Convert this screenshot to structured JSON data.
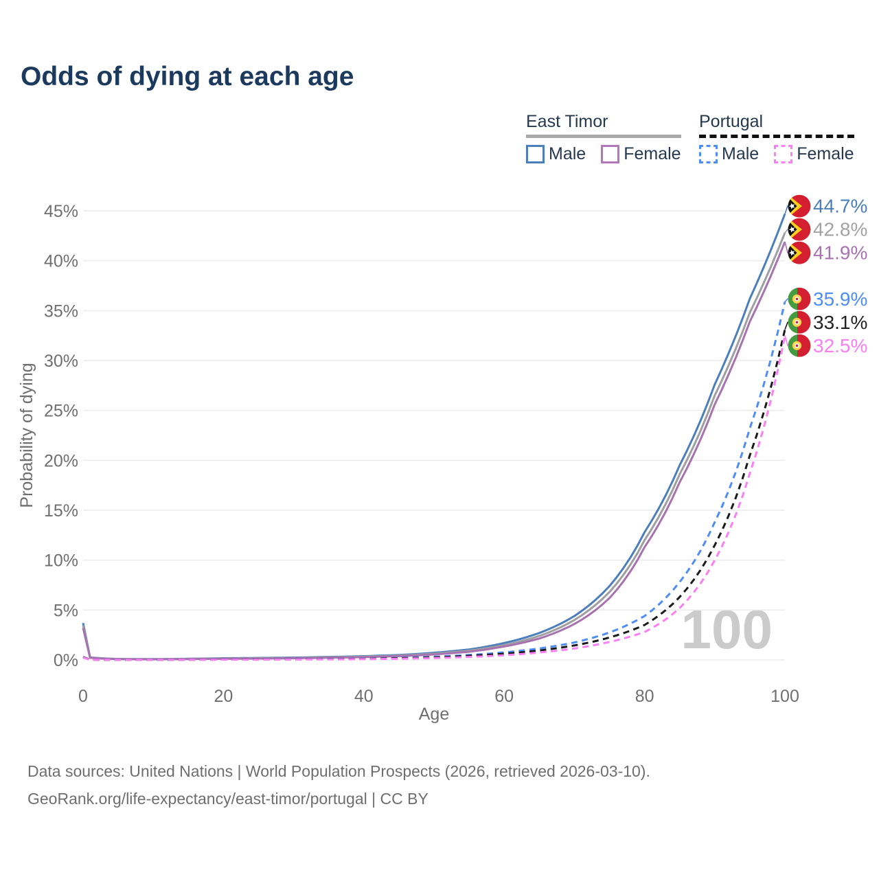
{
  "title": "Odds of dying at each age",
  "legend": {
    "groups": [
      {
        "label": "East Timor",
        "line_style": "solid",
        "underline_color": "#a9a9a9",
        "items": [
          {
            "label": "Male",
            "color": "#4a7ebc"
          },
          {
            "label": "Female",
            "color": "#b277ba"
          }
        ]
      },
      {
        "label": "Portugal",
        "line_style": "dashed",
        "underline_color": "#111111",
        "items": [
          {
            "label": "Male",
            "color": "#4d8df5"
          },
          {
            "label": "Female",
            "color": "#fb7ef5"
          }
        ]
      }
    ]
  },
  "chart_data": {
    "type": "line",
    "title": "Odds of dying at each age",
    "xlabel": "Age",
    "ylabel": "Probability of dying",
    "xlim": [
      0,
      100
    ],
    "ylim": [
      0,
      45
    ],
    "x_ticks": [
      0,
      20,
      40,
      60,
      80,
      100
    ],
    "y_ticks": [
      0,
      5,
      10,
      15,
      20,
      25,
      30,
      35,
      40,
      45
    ],
    "y_tick_suffix": "%",
    "grid": true,
    "legend_position": "top-right",
    "watermark": "100",
    "x": [
      0,
      1,
      5,
      10,
      15,
      20,
      25,
      30,
      35,
      40,
      45,
      50,
      55,
      60,
      65,
      70,
      75,
      80,
      85,
      90,
      95,
      100
    ],
    "series": [
      {
        "name": "East Timor Male",
        "color": "#4a7ebc",
        "dash": false,
        "flag": "east-timor",
        "end_label": "44.7%",
        "end_label_color": "#4a7ebc",
        "values": [
          3.7,
          0.25,
          0.1,
          0.08,
          0.12,
          0.17,
          0.2,
          0.24,
          0.3,
          0.38,
          0.5,
          0.72,
          1.05,
          1.7,
          2.7,
          4.4,
          7.4,
          12.8,
          19.5,
          27.6,
          36.2,
          44.7
        ]
      },
      {
        "name": "East Timor Both sexes",
        "color": "#9e9ea3",
        "dash": false,
        "flag": "east-timor",
        "end_label": "42.8%",
        "end_label_color": "#a3a3a3",
        "values": [
          3.45,
          0.23,
          0.09,
          0.07,
          0.1,
          0.14,
          0.17,
          0.2,
          0.26,
          0.33,
          0.44,
          0.63,
          0.93,
          1.5,
          2.4,
          4.0,
          6.8,
          12.0,
          18.6,
          26.5,
          34.8,
          42.8
        ]
      },
      {
        "name": "East Timor Female",
        "color": "#a872b0",
        "dash": false,
        "flag": "east-timor",
        "end_label": "41.9%",
        "end_label_color": "#a872b0",
        "values": [
          3.2,
          0.21,
          0.08,
          0.06,
          0.09,
          0.12,
          0.14,
          0.17,
          0.22,
          0.28,
          0.38,
          0.55,
          0.82,
          1.35,
          2.15,
          3.6,
          6.2,
          11.3,
          17.8,
          25.6,
          33.9,
          41.9
        ]
      },
      {
        "name": "Portugal Male",
        "color": "#4d8df5",
        "dash": true,
        "flag": "portugal",
        "end_label": "35.9%",
        "end_label_color": "#4d8df5",
        "values": [
          0.3,
          0.03,
          0.01,
          0.01,
          0.03,
          0.05,
          0.06,
          0.07,
          0.09,
          0.13,
          0.2,
          0.32,
          0.5,
          0.76,
          1.15,
          1.75,
          2.75,
          4.4,
          7.8,
          13.8,
          23.2,
          35.9
        ]
      },
      {
        "name": "Portugal Both sexes",
        "color": "#1a1a1a",
        "dash": true,
        "flag": "portugal",
        "end_label": "33.1%",
        "end_label_color": "#222222",
        "values": [
          0.28,
          0.025,
          0.01,
          0.01,
          0.02,
          0.04,
          0.05,
          0.06,
          0.08,
          0.11,
          0.17,
          0.26,
          0.41,
          0.62,
          0.95,
          1.45,
          2.25,
          3.5,
          6.3,
          11.5,
          20.5,
          33.1
        ]
      },
      {
        "name": "Portugal Female",
        "color": "#fb7ef5",
        "dash": true,
        "flag": "portugal",
        "end_label": "32.5%",
        "end_label_color": "#fb7ef5",
        "values": [
          0.25,
          0.02,
          0.01,
          0.01,
          0.015,
          0.025,
          0.03,
          0.04,
          0.055,
          0.08,
          0.12,
          0.19,
          0.3,
          0.47,
          0.75,
          1.15,
          1.8,
          2.8,
          5.2,
          10.0,
          18.7,
          32.5
        ]
      }
    ]
  },
  "footer": {
    "line1": "Data sources: United Nations | World Population Prospects (2026, retrieved 2026-03-10).",
    "line2": "GeoRank.org/life-expectancy/east-timor/portugal | CC BY"
  }
}
